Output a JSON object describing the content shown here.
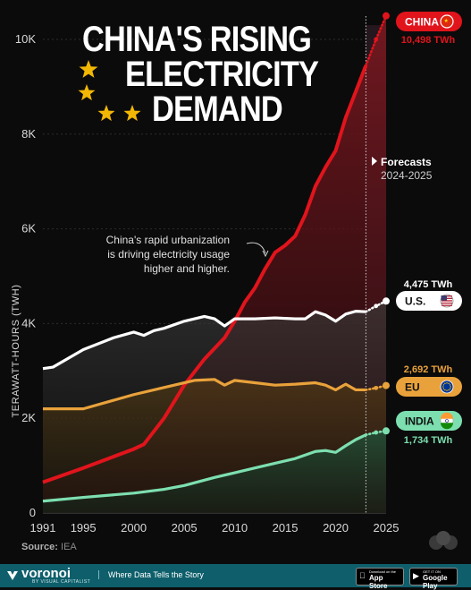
{
  "title": {
    "line1": "CHINA'S RISING",
    "line2": "ELECTRICITY",
    "line3": "DEMAND"
  },
  "source_label": "Source:",
  "source_value": "IEA",
  "footer": {
    "brand": "voronoi",
    "brand_sub": "BY VISUAL CAPITALIST",
    "tagline": "Where Data Tells the Story",
    "app_store_small": "Download on the",
    "app_store_big": "App Store",
    "google_play_small": "GET IT ON",
    "google_play_big": "Google Play"
  },
  "annotation": {
    "lines": [
      "China's rapid urbanization",
      "is driving electricity usage",
      "higher and higher."
    ]
  },
  "forecast": {
    "title": "Forecasts",
    "range": "2024-2025"
  },
  "colors": {
    "china": "#e1141c",
    "china_fill": "#5c1218",
    "us": "#ffffff",
    "eu": "#e9a23b",
    "india": "#7ddfb0",
    "background": "#0b0b0b",
    "footer": "#0e5f6b"
  },
  "chart_data": {
    "type": "line",
    "title": "CHINA'S RISING ELECTRICITY DEMAND",
    "xlabel": "",
    "ylabel": "TERAWATT-HOURS (TWH)",
    "xlim": [
      1991,
      2025
    ],
    "ylim": [
      0,
      10000
    ],
    "x_ticks": [
      1991,
      1995,
      2000,
      2005,
      2010,
      2015,
      2020,
      2025
    ],
    "y_ticks": [
      0,
      2000,
      4000,
      6000,
      8000,
      10000
    ],
    "y_tick_labels": [
      "0",
      "2K",
      "4K",
      "6K",
      "8K",
      "10K"
    ],
    "forecast_start": 2023,
    "series": [
      {
        "key": "china",
        "name": "CHINA",
        "end_label": "10,498 TWh",
        "flag": "china-flag-icon",
        "x": [
          1991,
          1995,
          2000,
          2001,
          2003,
          2005,
          2007,
          2009,
          2010,
          2011,
          2012,
          2013,
          2014,
          2015,
          2016,
          2017,
          2018,
          2019,
          2020,
          2021,
          2022,
          2023
        ],
        "y": [
          650,
          950,
          1350,
          1450,
          2000,
          2700,
          3250,
          3700,
          4050,
          4450,
          4750,
          5150,
          5500,
          5650,
          5850,
          6300,
          6900,
          7300,
          7650,
          8350,
          8900,
          9450
        ],
        "forecast_x": [
          2023,
          2024,
          2025
        ],
        "forecast_y": [
          9450,
          10000,
          10498
        ]
      },
      {
        "key": "us",
        "name": "U.S.",
        "end_label": "4,475 TWh",
        "flag": "us-flag-icon",
        "x": [
          1991,
          1992,
          1995,
          1998,
          2000,
          2001,
          2002,
          2003,
          2005,
          2007,
          2008,
          2009,
          2010,
          2012,
          2014,
          2016,
          2017,
          2018,
          2019,
          2020,
          2021,
          2022,
          2023
        ],
        "y": [
          3050,
          3080,
          3450,
          3700,
          3820,
          3750,
          3850,
          3900,
          4050,
          4150,
          4100,
          3950,
          4100,
          4100,
          4120,
          4100,
          4100,
          4250,
          4180,
          4050,
          4200,
          4260,
          4250
        ],
        "forecast_x": [
          2023,
          2024,
          2025
        ],
        "forecast_y": [
          4250,
          4370,
          4475
        ]
      },
      {
        "key": "eu",
        "name": "EU",
        "end_label": "2,692 TWh",
        "flag": "eu-flag-icon",
        "x": [
          1991,
          1995,
          2000,
          2003,
          2005,
          2006,
          2008,
          2009,
          2010,
          2012,
          2014,
          2016,
          2018,
          2019,
          2020,
          2021,
          2022,
          2023
        ],
        "y": [
          2200,
          2200,
          2500,
          2650,
          2750,
          2800,
          2820,
          2700,
          2800,
          2750,
          2700,
          2720,
          2750,
          2700,
          2600,
          2720,
          2600,
          2600
        ],
        "forecast_x": [
          2023,
          2024,
          2025
        ],
        "forecast_y": [
          2600,
          2640,
          2692
        ]
      },
      {
        "key": "india",
        "name": "INDIA",
        "end_label": "1,734 TWh",
        "flag": "india-flag-icon",
        "x": [
          1991,
          1995,
          2000,
          2003,
          2005,
          2008,
          2010,
          2012,
          2014,
          2016,
          2018,
          2019,
          2020,
          2021,
          2022,
          2023
        ],
        "y": [
          250,
          330,
          420,
          500,
          580,
          750,
          850,
          950,
          1050,
          1150,
          1300,
          1320,
          1280,
          1420,
          1550,
          1650
        ],
        "forecast_x": [
          2023,
          2024,
          2025
        ],
        "forecast_y": [
          1650,
          1700,
          1734
        ]
      }
    ]
  }
}
